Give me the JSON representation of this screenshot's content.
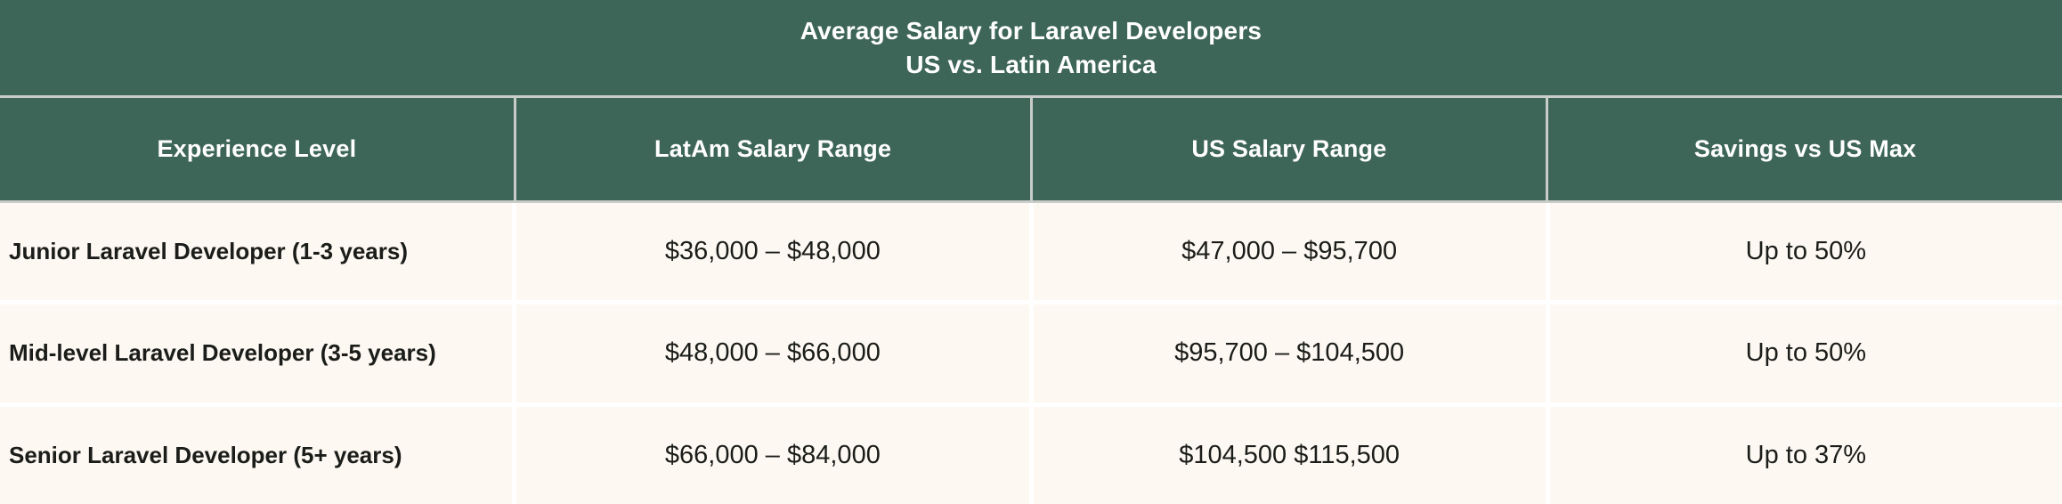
{
  "title": {
    "line1": "Average Salary for Laravel Developers",
    "line2": "US vs. Latin America"
  },
  "chart_data": {
    "type": "table",
    "title": "Average Salary for Laravel Developers — US vs. Latin America",
    "columns": [
      "Experience Level",
      "LatAm Salary Range",
      "US Salary Range",
      "Savings vs US Max"
    ],
    "rows": [
      [
        "Junior Laravel Developer (1-3 years)",
        "$36,000 – $48,000",
        "$47,000 – $95,700",
        "Up to 50%"
      ],
      [
        "Mid-level Laravel Developer (3-5 years)",
        "$48,000 – $66,000",
        "$95,700 – $104,500",
        "Up to 50%"
      ],
      [
        "Senior Laravel Developer (5+ years)",
        "$66,000 – $84,000",
        "$104,500 $115,500",
        "Up to 37%"
      ]
    ],
    "notes": {
      "salary_ranges_numeric_usd": {
        "latam": [
          [
            36000,
            48000
          ],
          [
            48000,
            66000
          ],
          [
            66000,
            84000
          ]
        ],
        "us": [
          [
            47000,
            95700
          ],
          [
            95700,
            104500
          ],
          [
            104500,
            115500
          ]
        ],
        "savings_vs_us_max_pct": [
          50,
          50,
          37
        ]
      }
    }
  },
  "colors": {
    "header_green": "#3E6658",
    "body_cream": "#FDF8F1",
    "header_grid_gray": "#C9CCC9",
    "body_grid_white": "#FFFFFF",
    "text_dark": "#1B1D1A",
    "text_light": "#FFFFFF"
  }
}
